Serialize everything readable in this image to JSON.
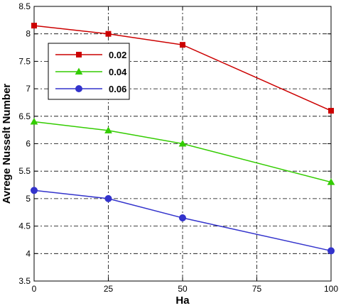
{
  "chart_data": {
    "type": "line",
    "title": "",
    "xlabel": "Ha",
    "ylabel": "Avrege Nusselt Number",
    "x": [
      0,
      25,
      50,
      100
    ],
    "xlim": [
      0,
      100
    ],
    "ylim": [
      3.5,
      8.5
    ],
    "xticks": [
      0,
      25,
      50,
      75,
      100
    ],
    "yticks": [
      3.5,
      4,
      4.5,
      5,
      5.5,
      6,
      6.5,
      7,
      7.5,
      8,
      8.5
    ],
    "xtick_labels": [
      "0",
      "25",
      "50",
      "75",
      "100"
    ],
    "ytick_labels": [
      "3.5",
      "4",
      "4.5",
      "5",
      "5.5",
      "6",
      "6.5",
      "7",
      "7.5",
      "8",
      "8.5"
    ],
    "grid": true,
    "legend_position": "upper-left",
    "series": [
      {
        "name": "0.02",
        "values": [
          8.15,
          8.0,
          7.8,
          6.6
        ],
        "color": "#cc0000",
        "marker": "square"
      },
      {
        "name": "0.04",
        "values": [
          6.4,
          6.24,
          6.0,
          5.3
        ],
        "color": "#33cc00",
        "marker": "triangle"
      },
      {
        "name": "0.06",
        "values": [
          5.15,
          5.0,
          4.65,
          4.05
        ],
        "color": "#3333cc",
        "marker": "circle"
      }
    ]
  }
}
